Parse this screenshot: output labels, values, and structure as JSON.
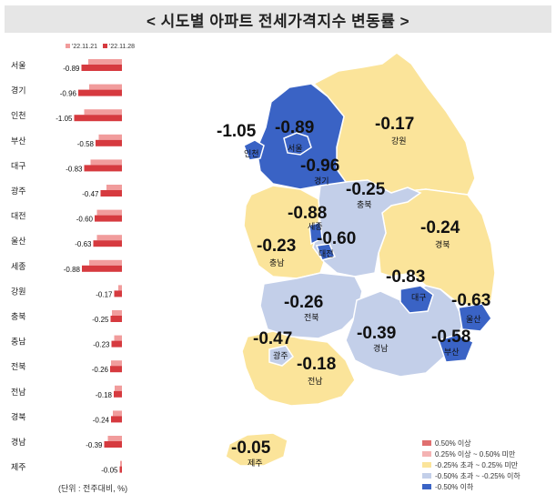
{
  "title": "< 시도별 아파트 전세가격지수 변동률 >",
  "unit_note": "(단위 : 전주대비, %)",
  "colors": {
    "prev_bar": "#f19c9c",
    "curr_bar": "#d63a3f",
    "map_blue": "#3a63c5",
    "map_light_blue": "#c3cfe9",
    "map_yellow": "#fbe49a",
    "map_pink": "#f4b3b3",
    "map_red": "#e06f6f"
  },
  "chart_data": {
    "type": "bar",
    "orientation": "horizontal",
    "categories": [
      "서울",
      "경기",
      "인천",
      "부산",
      "대구",
      "광주",
      "대전",
      "울산",
      "세종",
      "강원",
      "충북",
      "충남",
      "전북",
      "전남",
      "경북",
      "경남",
      "제주"
    ],
    "series": [
      {
        "name": "'22.11.21",
        "values": [
          -0.74,
          -0.72,
          -0.83,
          -0.51,
          -0.69,
          -0.34,
          -0.55,
          -0.55,
          -0.72,
          -0.08,
          -0.22,
          -0.17,
          -0.24,
          -0.16,
          -0.2,
          -0.31,
          -0.04
        ]
      },
      {
        "name": "'22.11.28",
        "values": [
          -0.89,
          -0.96,
          -1.05,
          -0.58,
          -0.83,
          -0.47,
          -0.6,
          -0.63,
          -0.88,
          -0.17,
          -0.25,
          -0.23,
          -0.26,
          -0.18,
          -0.24,
          -0.39,
          -0.05
        ]
      }
    ],
    "data_labels": [
      "-0.89",
      "-0.96",
      "-1.05",
      "-0.58",
      "-0.83",
      "-0.47",
      "-0.60",
      "-0.63",
      "-0.88",
      "-0.17",
      "-0.25",
      "-0.23",
      "-0.26",
      "-0.18",
      "-0.24",
      "-0.39",
      "-0.05"
    ],
    "xlim": [
      -1.1,
      0
    ]
  },
  "map": {
    "regions": [
      {
        "name": "서울",
        "value": "-0.89",
        "class": "-0.50% 이하"
      },
      {
        "name": "인천",
        "value": "-1.05",
        "class": "-0.50% 이하"
      },
      {
        "name": "경기",
        "value": "-0.96",
        "class": "-0.50% 이하"
      },
      {
        "name": "강원",
        "value": "-0.17",
        "class": "-0.25% 초과 ~ 0.25% 미만"
      },
      {
        "name": "충북",
        "value": "-0.25",
        "class": "-0.50% 초과 ~ -0.25% 이하"
      },
      {
        "name": "세종",
        "value": "-0.88",
        "class": "-0.50% 이하"
      },
      {
        "name": "대전",
        "value": "-0.60",
        "class": "-0.50% 이하"
      },
      {
        "name": "충남",
        "value": "-0.23",
        "class": "-0.25% 초과 ~ 0.25% 미만"
      },
      {
        "name": "경북",
        "value": "-0.24",
        "class": "-0.25% 초과 ~ 0.25% 미만"
      },
      {
        "name": "대구",
        "value": "-0.83",
        "class": "-0.50% 이하"
      },
      {
        "name": "울산",
        "value": "-0.63",
        "class": "-0.50% 이하"
      },
      {
        "name": "부산",
        "value": "-0.58",
        "class": "-0.50% 이하"
      },
      {
        "name": "전북",
        "value": "-0.26",
        "class": "-0.50% 초과 ~ -0.25% 이하"
      },
      {
        "name": "경남",
        "value": "-0.39",
        "class": "-0.50% 초과 ~ -0.25% 이하"
      },
      {
        "name": "광주",
        "value": "-0.47",
        "class": "-0.50% 초과 ~ -0.25% 이하"
      },
      {
        "name": "전남",
        "value": "-0.18",
        "class": "-0.25% 초과 ~ 0.25% 미만"
      },
      {
        "name": "제주",
        "value": "-0.05",
        "class": "-0.25% 초과 ~ 0.25% 미만"
      }
    ]
  },
  "legend": [
    {
      "label": "0.50% 이상",
      "color": "#e06f6f"
    },
    {
      "label": "0.25% 이상 ~ 0.50% 미만",
      "color": "#f4b3b3"
    },
    {
      "label": "-0.25% 초과 ~ 0.25% 미만",
      "color": "#fbe49a"
    },
    {
      "label": "-0.50% 초과 ~ -0.25% 이하",
      "color": "#c3cfe9"
    },
    {
      "label": "-0.50% 이하",
      "color": "#3a63c5"
    }
  ]
}
